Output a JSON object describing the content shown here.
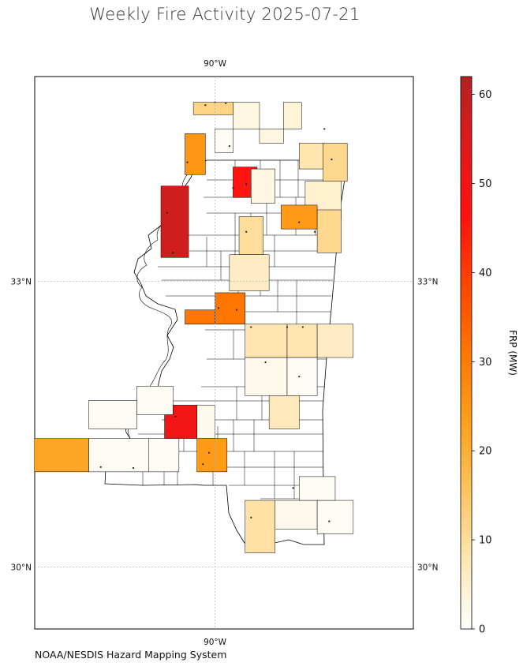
{
  "title": "Weekly Fire Activity 2025-07-21",
  "footer": "NOAA/NESDIS Hazard Mapping System",
  "map": {
    "extent": {
      "lon_min": -91.5,
      "lon_max": -88.35,
      "lat_min": 29.35,
      "lat_max": 35.15
    },
    "lon_gridline": {
      "lon": -90,
      "label": "90°W"
    },
    "lat_gridlines": [
      {
        "lat": 33,
        "label": "33°N"
      },
      {
        "lat": 30,
        "label": "30°N"
      }
    ],
    "colors": {
      "state_outline": "#000000",
      "grid": "#aaaaaa",
      "fire_point": "#222222"
    }
  },
  "colorbar": {
    "label": "FRP (MW)",
    "min": 0,
    "max": 62,
    "ticks": [
      0,
      10,
      20,
      30,
      40,
      50,
      60
    ],
    "colors": [
      "#ffffff",
      "#ffe7b3",
      "#ffc460",
      "#ff9f1a",
      "#ff7700",
      "#ff4400",
      "#ff1111",
      "#e01a1a",
      "#b22222"
    ]
  },
  "counties": [
    {
      "lon": [
        -90.18,
        -89.85
      ],
      "lat": [
        34.88,
        34.75
      ],
      "frp": 12
    },
    {
      "lon": [
        -89.85,
        -89.63
      ],
      "lat": [
        34.88,
        34.6
      ],
      "frp": 3
    },
    {
      "lon": [
        -89.43,
        -89.28
      ],
      "lat": [
        34.88,
        34.6
      ],
      "frp": 4
    },
    {
      "lon": [
        -89.63,
        -89.43
      ],
      "lat": [
        34.6,
        34.45
      ],
      "frp": 3
    },
    {
      "lon": [
        -89.3,
        -89.1
      ],
      "lat": [
        34.45,
        34.18
      ],
      "frp": 8
    },
    {
      "lon": [
        -89.1,
        -88.9
      ],
      "lat": [
        34.45,
        34.05
      ],
      "frp": 11
    },
    {
      "lon": [
        -90.0,
        -89.85
      ],
      "lat": [
        34.6,
        34.35
      ],
      "frp": 1
    },
    {
      "lon": [
        -90.25,
        -90.08
      ],
      "lat": [
        34.55,
        34.12
      ],
      "frp": 25
    },
    {
      "lon": [
        -89.85,
        -89.65
      ],
      "lat": [
        34.2,
        33.88
      ],
      "frp": 46
    },
    {
      "lon": [
        -89.7,
        -89.5
      ],
      "lat": [
        34.18,
        33.82
      ],
      "frp": 3
    },
    {
      "lon": [
        -89.25,
        -88.95
      ],
      "lat": [
        34.05,
        33.65
      ],
      "frp": 5
    },
    {
      "lon": [
        -89.45,
        -89.15
      ],
      "lat": [
        33.8,
        33.55
      ],
      "frp": 24
    },
    {
      "lon": [
        -89.15,
        -88.95
      ],
      "lat": [
        33.75,
        33.3
      ],
      "frp": 11
    },
    {
      "lon": [
        -89.8,
        -89.6
      ],
      "lat": [
        33.68,
        33.28
      ],
      "frp": 10
    },
    {
      "lon": [
        -90.45,
        -90.22
      ],
      "lat": [
        34.0,
        33.25
      ],
      "frp": 57
    },
    {
      "lon": [
        -89.88,
        -89.55
      ],
      "lat": [
        33.28,
        32.9
      ],
      "frp": 6
    },
    {
      "lon": [
        -90.0,
        -89.75
      ],
      "lat": [
        32.88,
        32.55
      ],
      "frp": 31
    },
    {
      "lon": [
        -90.25,
        -90.0
      ],
      "lat": [
        32.7,
        32.55
      ],
      "frp": 31
    },
    {
      "lon": [
        -89.75,
        -89.4
      ],
      "lat": [
        32.55,
        32.2
      ],
      "frp": 8
    },
    {
      "lon": [
        -89.4,
        -89.15
      ],
      "lat": [
        32.55,
        32.2
      ],
      "frp": 8
    },
    {
      "lon": [
        -89.15,
        -88.85
      ],
      "lat": [
        32.55,
        32.2
      ],
      "frp": 6
    },
    {
      "lon": [
        -89.75,
        -89.4
      ],
      "lat": [
        32.2,
        31.8
      ],
      "frp": 2
    },
    {
      "lon": [
        -89.4,
        -89.15
      ],
      "lat": [
        32.2,
        31.8
      ],
      "frp": 1
    },
    {
      "lon": [
        -89.55,
        -89.3
      ],
      "lat": [
        31.8,
        31.45
      ],
      "frp": 7
    },
    {
      "lon": [
        -90.42,
        -90.15
      ],
      "lat": [
        31.7,
        31.35
      ],
      "frp": 50
    },
    {
      "lon": [
        -90.15,
        -90.0
      ],
      "lat": [
        31.7,
        31.35
      ],
      "frp": 2
    },
    {
      "lon": [
        -90.15,
        -89.9
      ],
      "lat": [
        31.35,
        31.0
      ],
      "frp": 24
    },
    {
      "lon": [
        -91.55,
        -91.05
      ],
      "lat": [
        31.35,
        31.0
      ],
      "frp": 22
    },
    {
      "lon": [
        -91.05,
        -90.55
      ],
      "lat": [
        31.35,
        31.0
      ],
      "frp": 1
    },
    {
      "lon": [
        -90.55,
        -90.3
      ],
      "lat": [
        31.35,
        31.0
      ],
      "frp": 1
    },
    {
      "lon": [
        -90.65,
        -90.35
      ],
      "lat": [
        31.9,
        31.6
      ],
      "frp": 1
    },
    {
      "lon": [
        -91.05,
        -90.65
      ],
      "lat": [
        31.75,
        31.45
      ],
      "frp": 1
    },
    {
      "lon": [
        -89.75,
        -89.5
      ],
      "lat": [
        30.7,
        30.15
      ],
      "frp": 9
    },
    {
      "lon": [
        -89.5,
        -89.15
      ],
      "lat": [
        30.7,
        30.4
      ],
      "frp": 2
    },
    {
      "lon": [
        -89.15,
        -88.85
      ],
      "lat": [
        30.7,
        30.35
      ],
      "frp": 1
    },
    {
      "lon": [
        -89.3,
        -89.0
      ],
      "lat": [
        30.95,
        30.7
      ],
      "frp": 1
    }
  ],
  "fire_points": [
    {
      "lon": -90.08,
      "lat": 34.85
    },
    {
      "lon": -90.0,
      "lat": 34.88
    },
    {
      "lon": -89.91,
      "lat": 34.87
    },
    {
      "lon": -89.88,
      "lat": 34.42
    },
    {
      "lon": -90.23,
      "lat": 34.25
    },
    {
      "lon": -89.74,
      "lat": 34.02
    },
    {
      "lon": -89.85,
      "lat": 33.98
    },
    {
      "lon": -90.4,
      "lat": 33.72
    },
    {
      "lon": -89.3,
      "lat": 33.62
    },
    {
      "lon": -89.74,
      "lat": 33.52
    },
    {
      "lon": -89.97,
      "lat": 32.72
    },
    {
      "lon": -89.82,
      "lat": 32.7
    },
    {
      "lon": -89.7,
      "lat": 32.52
    },
    {
      "lon": -89.4,
      "lat": 32.52
    },
    {
      "lon": -89.27,
      "lat": 32.52
    },
    {
      "lon": -89.58,
      "lat": 32.15
    },
    {
      "lon": -89.3,
      "lat": 32.0
    },
    {
      "lon": -90.33,
      "lat": 31.58
    },
    {
      "lon": -90.05,
      "lat": 31.2
    },
    {
      "lon": -90.1,
      "lat": 31.08
    },
    {
      "lon": -90.68,
      "lat": 31.04
    },
    {
      "lon": -90.95,
      "lat": 31.05
    },
    {
      "lon": -89.7,
      "lat": 30.52
    },
    {
      "lon": -89.05,
      "lat": 30.48
    },
    {
      "lon": -89.35,
      "lat": 30.83
    },
    {
      "lon": -89.03,
      "lat": 34.28
    },
    {
      "lon": -89.17,
      "lat": 33.52
    },
    {
      "lon": -89.09,
      "lat": 34.6
    },
    {
      "lon": -90.35,
      "lat": 33.3
    }
  ]
}
